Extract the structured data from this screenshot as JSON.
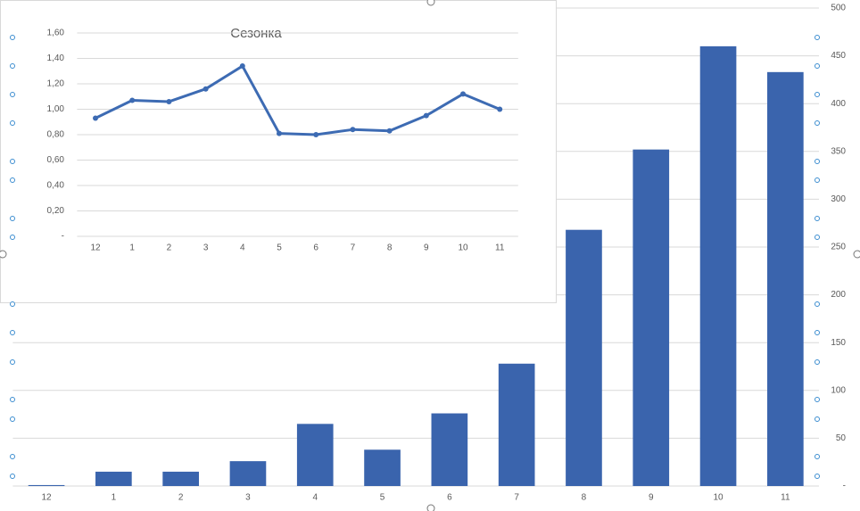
{
  "chart_data": [
    {
      "type": "bar",
      "categories": [
        "12",
        "1",
        "2",
        "3",
        "4",
        "5",
        "6",
        "7",
        "8",
        "9",
        "10",
        "11"
      ],
      "values": [
        1,
        15,
        15,
        26,
        65,
        38,
        76,
        128,
        268,
        352,
        460,
        433
      ],
      "color": "#3a64ad",
      "ylim": [
        0,
        500
      ],
      "yticks": [
        {
          "value": 0,
          "label": "-"
        },
        50,
        100,
        150,
        200,
        250,
        300,
        350,
        400,
        450,
        500
      ],
      "grid": true
    },
    {
      "type": "line",
      "title": "Сезонка",
      "categories": [
        "12",
        "1",
        "2",
        "3",
        "4",
        "5",
        "6",
        "7",
        "8",
        "9",
        "10",
        "11"
      ],
      "values": [
        0.93,
        1.07,
        1.06,
        1.16,
        1.34,
        0.81,
        0.8,
        0.84,
        0.83,
        0.95,
        1.12,
        1.0
      ],
      "color": "#3d6bb3",
      "ylim": [
        0,
        1.6
      ],
      "yticks": [
        {
          "value": 0,
          "label": "-"
        },
        {
          "value": 0.2,
          "label": "0,20"
        },
        {
          "value": 0.4,
          "label": "0,40"
        },
        {
          "value": 0.6,
          "label": "0,60"
        },
        {
          "value": 0.8,
          "label": "0,80"
        },
        {
          "value": 1.0,
          "label": "1,00"
        },
        {
          "value": 1.2,
          "label": "1,20"
        },
        {
          "value": 1.4,
          "label": "1,40"
        },
        {
          "value": 1.6,
          "label": "1,60"
        }
      ],
      "grid": true
    }
  ]
}
